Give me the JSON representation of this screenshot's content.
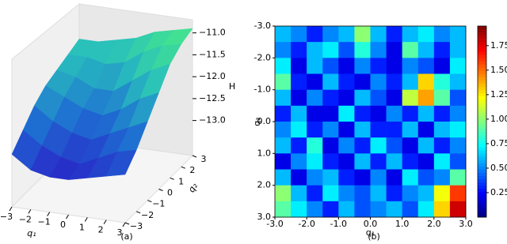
{
  "chart_data": [
    {
      "type": "surface3d",
      "caption": "(a)",
      "xlabel": "q₁",
      "ylabel": "q₂",
      "zlabel": "H",
      "xlim": [
        -3,
        3
      ],
      "ylim": [
        -3,
        3
      ],
      "zlim": [
        -13.8,
        -10.7
      ],
      "xticks": [
        {
          "value": -3,
          "label": "−3"
        },
        {
          "value": -2,
          "label": "−2"
        },
        {
          "value": -1,
          "label": "−1"
        },
        0,
        1,
        2,
        3
      ],
      "yticks": [
        {
          "value": -3,
          "label": "−3"
        },
        {
          "value": -2,
          "label": "−2"
        },
        {
          "value": -1,
          "label": "−1"
        },
        0,
        1,
        2,
        3
      ],
      "zticks": [
        {
          "value": -11.0,
          "label": "−11.0"
        },
        {
          "value": -11.5,
          "label": "−11.5"
        },
        {
          "value": -12.0,
          "label": "−12.0"
        },
        {
          "value": -12.5,
          "label": "−12.5"
        },
        {
          "value": -13.0,
          "label": "−13.0"
        }
      ],
      "x": [
        -3,
        -2,
        -1,
        0,
        1,
        2,
        3
      ],
      "y": [
        -3,
        -2,
        -1,
        0,
        1,
        2,
        3
      ],
      "z": [
        [
          -12.6,
          -12.9,
          -13.0,
          -13.0,
          -12.9,
          -12.8,
          -12.7
        ],
        [
          -12.3,
          -12.6,
          -12.8,
          -12.9,
          -12.7,
          -12.5,
          -12.4
        ],
        [
          -12.0,
          -12.3,
          -12.5,
          -12.6,
          -12.4,
          -12.2,
          -12.0
        ],
        [
          -11.8,
          -12.0,
          -12.2,
          -12.3,
          -12.1,
          -11.8,
          -11.6
        ],
        [
          -11.7,
          -11.8,
          -12.0,
          -12.0,
          -11.7,
          -11.4,
          -11.2
        ],
        [
          -11.6,
          -11.6,
          -11.7,
          -11.6,
          -11.3,
          -11.1,
          -11.0
        ],
        [
          -11.5,
          -11.5,
          -11.4,
          -11.3,
          -11.1,
          -11.0,
          -10.9
        ]
      ]
    },
    {
      "type": "heatmap",
      "caption": "(b)",
      "xlabel": "q₁",
      "ylabel": "q₂",
      "xlim": [
        -3,
        3
      ],
      "ylim": [
        3,
        -3
      ],
      "xticks": [
        {
          "value": -3,
          "label": "-3.0"
        },
        {
          "value": -2,
          "label": "-2.0"
        },
        {
          "value": -1,
          "label": "-1.0"
        },
        {
          "value": 0,
          "label": "0.0"
        },
        {
          "value": 1,
          "label": "1.0"
        },
        {
          "value": 2,
          "label": "2.0"
        },
        {
          "value": 3,
          "label": "3.0"
        }
      ],
      "yticks": [
        {
          "value": -3,
          "label": "-3.0"
        },
        {
          "value": -2,
          "label": "-2.0"
        },
        {
          "value": -1,
          "label": "-1.0"
        },
        {
          "value": 0,
          "label": "0.0"
        },
        {
          "value": 1,
          "label": "1.0"
        },
        {
          "value": 2,
          "label": "2.0"
        },
        {
          "value": 3,
          "label": "3.0"
        }
      ],
      "clim": [
        0,
        1.95
      ],
      "cticks": [
        0.25,
        {
          "value": 0.5,
          "label": "0.50"
        },
        0.75,
        {
          "value": 1.0,
          "label": "1.00"
        },
        1.25,
        {
          "value": 1.5,
          "label": "1.50"
        },
        1.75
      ],
      "z": [
        [
          0.6,
          0.5,
          0.3,
          0.5,
          0.6,
          1.0,
          0.6,
          0.3,
          0.6,
          0.7,
          0.5,
          0.6
        ],
        [
          0.5,
          0.3,
          0.6,
          0.7,
          0.4,
          0.8,
          0.5,
          0.2,
          0.9,
          0.6,
          0.3,
          0.6
        ],
        [
          0.7,
          0.2,
          0.6,
          0.4,
          0.2,
          0.5,
          0.3,
          0.2,
          0.5,
          0.4,
          0.2,
          0.7
        ],
        [
          0.9,
          0.3,
          0.2,
          0.6,
          0.3,
          0.2,
          0.5,
          0.3,
          0.6,
          1.3,
          0.8,
          0.6
        ],
        [
          0.6,
          0.2,
          0.5,
          0.3,
          0.2,
          0.6,
          0.4,
          0.2,
          1.1,
          1.4,
          0.9,
          0.4
        ],
        [
          0.3,
          0.6,
          0.2,
          0.2,
          0.7,
          0.3,
          0.2,
          0.5,
          0.3,
          0.6,
          0.3,
          0.5
        ],
        [
          0.5,
          0.7,
          0.3,
          0.5,
          0.2,
          0.6,
          0.3,
          0.3,
          0.6,
          0.2,
          0.6,
          0.7
        ],
        [
          0.6,
          0.3,
          0.8,
          0.2,
          0.5,
          0.3,
          0.7,
          0.4,
          0.2,
          0.6,
          0.3,
          0.5
        ],
        [
          0.2,
          0.5,
          0.7,
          0.3,
          0.2,
          0.6,
          0.3,
          0.6,
          0.3,
          0.2,
          0.7,
          0.4
        ],
        [
          0.6,
          0.2,
          0.5,
          0.6,
          0.3,
          0.2,
          0.5,
          0.2,
          0.7,
          0.4,
          0.5,
          0.9
        ],
        [
          1.0,
          0.6,
          0.3,
          0.7,
          0.5,
          0.4,
          0.6,
          0.3,
          0.5,
          0.6,
          1.2,
          1.6
        ],
        [
          0.9,
          0.7,
          0.5,
          0.3,
          0.6,
          0.4,
          0.5,
          0.6,
          0.4,
          0.7,
          1.3,
          1.8
        ]
      ]
    }
  ]
}
